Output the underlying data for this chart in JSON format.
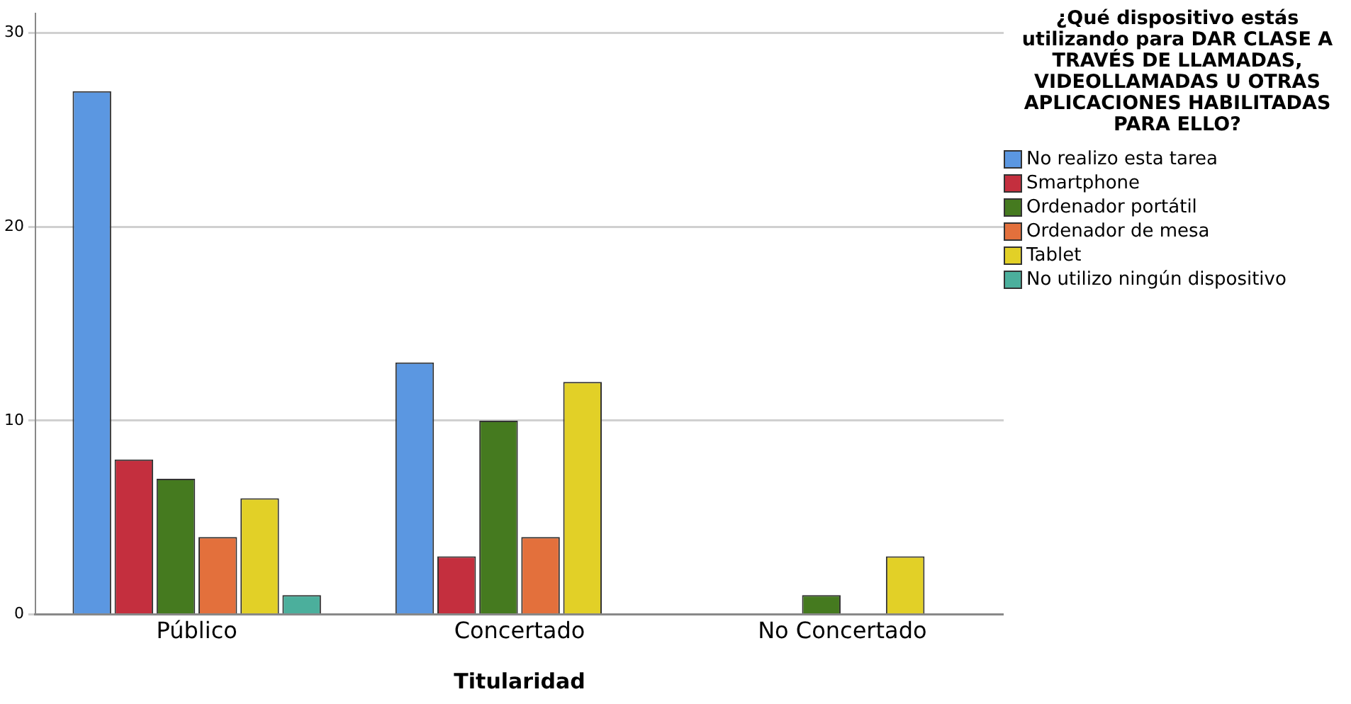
{
  "chart_data": {
    "type": "bar",
    "xlabel": "Titularidad",
    "legend_title": "¿Qué dispositivo estás utilizando para DAR CLASE A TRAVÉS DE LLAMADAS, VIDEOLLAMADAS U OTRAS APLICACIONES HABILITADAS PARA ELLO?",
    "categories": [
      "Público",
      "Concertado",
      "No Concertado"
    ],
    "series": [
      {
        "name": "No realizo esta tarea",
        "color": "#5b97e1",
        "values": [
          27,
          13,
          null
        ]
      },
      {
        "name": "Smartphone",
        "color": "#c42f3e",
        "values": [
          8,
          3,
          null
        ]
      },
      {
        "name": "Ordenador portátil",
        "color": "#457a1f",
        "values": [
          7,
          10,
          1
        ]
      },
      {
        "name": "Ordenador de mesa",
        "color": "#e3703c",
        "values": [
          4,
          4,
          null
        ]
      },
      {
        "name": "Tablet",
        "color": "#e2d027",
        "values": [
          6,
          12,
          3
        ]
      },
      {
        "name": "No utilizo ningún dispositivo",
        "color": "#4baf9c",
        "values": [
          1,
          null,
          null
        ]
      }
    ],
    "ylim": [
      0,
      31
    ],
    "yticks": [
      0,
      10,
      20,
      30
    ],
    "grid": "y",
    "legend": "right"
  }
}
